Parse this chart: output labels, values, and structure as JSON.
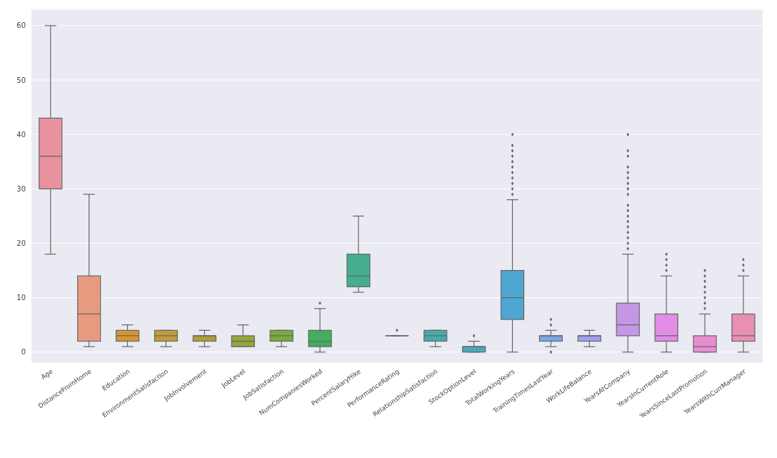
{
  "chart_data": {
    "type": "box",
    "categories": [
      "Age",
      "DistanceFromHome",
      "Education",
      "EnvironmentSatisfaction",
      "JobInvolvement",
      "JobLevel",
      "JobSatisfaction",
      "NumCompaniesWorked",
      "PercentSalaryHike",
      "PerformanceRating",
      "RelationshipSatisfaction",
      "StockOptionLevel",
      "TotalWorkingYears",
      "TrainingTimesLastYear",
      "WorkLifeBalance",
      "YearsAtCompany",
      "YearsInCurrentRole",
      "YearsSinceLastPromotion",
      "YearsWithCurrManager"
    ],
    "boxes": [
      {
        "low": 18,
        "q1": 30,
        "median": 36,
        "q3": 43,
        "high": 60
      },
      {
        "low": 1,
        "q1": 2,
        "median": 7,
        "q3": 14,
        "high": 29
      },
      {
        "low": 1,
        "q1": 2,
        "median": 3,
        "q3": 4,
        "high": 5
      },
      {
        "low": 1,
        "q1": 2,
        "median": 3,
        "q3": 4,
        "high": 4
      },
      {
        "low": 1,
        "q1": 2,
        "median": 3,
        "q3": 3,
        "high": 4
      },
      {
        "low": 1,
        "q1": 1,
        "median": 2,
        "q3": 3,
        "high": 5
      },
      {
        "low": 1,
        "q1": 2,
        "median": 3,
        "q3": 4,
        "high": 4
      },
      {
        "low": 0,
        "q1": 1,
        "median": 2,
        "q3": 4,
        "high": 8,
        "outliers": [
          9
        ]
      },
      {
        "low": 11,
        "q1": 12,
        "median": 14,
        "q3": 18,
        "high": 25
      },
      {
        "low": 3,
        "q1": 3,
        "median": 3,
        "q3": 3,
        "high": 3,
        "outliers": [
          4
        ]
      },
      {
        "low": 1,
        "q1": 2,
        "median": 3,
        "q3": 4,
        "high": 4
      },
      {
        "low": 0,
        "q1": 0,
        "median": 1,
        "q3": 1,
        "high": 2,
        "outliers": [
          3
        ]
      },
      {
        "low": 0,
        "q1": 6,
        "median": 10,
        "q3": 15,
        "high": 28,
        "outliers": [
          29,
          30,
          31,
          32,
          33,
          34,
          35,
          36,
          37,
          38,
          40
        ]
      },
      {
        "low": 1,
        "q1": 2,
        "median": 3,
        "q3": 3,
        "high": 4,
        "outliers": [
          0,
          5,
          6
        ]
      },
      {
        "low": 1,
        "q1": 2,
        "median": 3,
        "q3": 3,
        "high": 4
      },
      {
        "low": 0,
        "q1": 3,
        "median": 5,
        "q3": 9,
        "high": 18,
        "outliers": [
          19,
          20,
          21,
          22,
          23,
          24,
          25,
          26,
          27,
          29,
          30,
          31,
          32,
          33,
          34,
          36,
          37,
          40
        ]
      },
      {
        "low": 0,
        "q1": 2,
        "median": 3,
        "q3": 7,
        "high": 14,
        "outliers": [
          15,
          16,
          17,
          18
        ]
      },
      {
        "low": 0,
        "q1": 0,
        "median": 1,
        "q3": 3,
        "high": 7,
        "outliers": [
          8,
          9,
          10,
          11,
          12,
          13,
          14,
          15
        ]
      },
      {
        "low": 0,
        "q1": 2,
        "median": 3,
        "q3": 7,
        "high": 14,
        "outliers": [
          15,
          16,
          17
        ]
      }
    ],
    "colors": [
      "#e8919f",
      "#e89a80",
      "#d6962f",
      "#c49a3a",
      "#b09e35",
      "#98a43a",
      "#7aab3c",
      "#42ae5e",
      "#45ae8e",
      "#47ab9e",
      "#47aaaa",
      "#4aa8b6",
      "#4da7d0",
      "#7aa6e6",
      "#a0a0ee",
      "#c497e6",
      "#e08ee6",
      "#e88ed0",
      "#e88fb4"
    ],
    "ylim": [
      -2,
      63
    ],
    "yticks": [
      0,
      10,
      20,
      30,
      40,
      50,
      60
    ],
    "grid": "y"
  }
}
